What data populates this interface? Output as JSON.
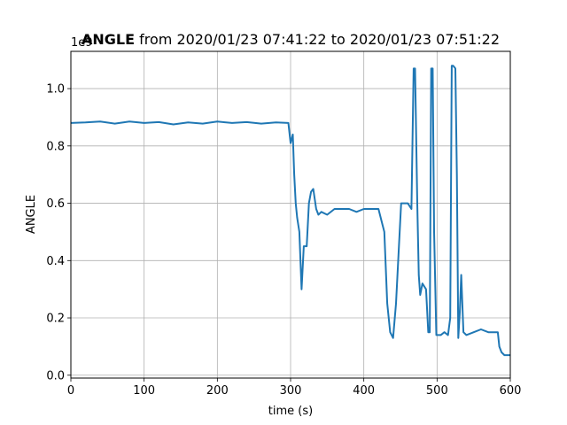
{
  "chart_data": {
    "type": "line",
    "title_bold": "ANGLE",
    "title_rest": " from 2020/01/23 07:41:22 to 2020/01/23 07:51:22",
    "xlabel": "time (s)",
    "ylabel": "ANGLE",
    "y_offset_label": "1e9",
    "xlim": [
      0,
      600
    ],
    "ylim": [
      -0.01,
      1.13
    ],
    "x_ticks": [
      0,
      100,
      200,
      300,
      400,
      500,
      600
    ],
    "x_tick_labels": [
      "0",
      "100",
      "200",
      "300",
      "400",
      "500",
      "600"
    ],
    "y_ticks": [
      0.0,
      0.2,
      0.4,
      0.6,
      0.8,
      1.0
    ],
    "y_tick_labels": [
      "0.0",
      "0.2",
      "0.4",
      "0.6",
      "0.8",
      "1.0"
    ],
    "grid": true,
    "line_color": "#1f77b4",
    "series": [
      {
        "x": [
          0,
          20,
          40,
          60,
          80,
          100,
          120,
          140,
          160,
          180,
          200,
          220,
          240,
          260,
          280,
          297,
          300,
          303,
          305,
          307,
          309,
          312,
          315,
          318,
          322,
          325,
          328,
          331,
          335,
          338,
          342,
          350,
          360,
          370,
          380,
          390,
          400,
          410,
          420,
          428,
          432,
          436,
          440,
          444,
          448,
          451,
          454,
          456,
          460,
          465,
          468,
          470,
          473,
          475,
          477,
          480,
          485,
          488,
          490,
          492,
          494,
          496,
          499,
          502,
          505,
          510,
          515,
          518,
          520,
          522,
          525,
          527,
          529,
          531,
          533,
          536,
          540,
          550,
          560,
          570,
          583,
          585,
          588,
          592,
          600
        ],
        "y": [
          0.88,
          0.882,
          0.885,
          0.878,
          0.885,
          0.88,
          0.883,
          0.875,
          0.882,
          0.878,
          0.885,
          0.88,
          0.883,
          0.878,
          0.882,
          0.88,
          0.81,
          0.84,
          0.7,
          0.6,
          0.55,
          0.5,
          0.3,
          0.45,
          0.45,
          0.6,
          0.64,
          0.65,
          0.58,
          0.56,
          0.57,
          0.56,
          0.58,
          0.58,
          0.58,
          0.57,
          0.58,
          0.58,
          0.58,
          0.5,
          0.25,
          0.15,
          0.13,
          0.25,
          0.45,
          0.6,
          0.6,
          0.6,
          0.6,
          0.58,
          1.07,
          1.07,
          0.6,
          0.35,
          0.28,
          0.32,
          0.3,
          0.15,
          0.15,
          1.07,
          1.07,
          0.5,
          0.14,
          0.14,
          0.14,
          0.15,
          0.14,
          0.2,
          1.08,
          1.08,
          1.07,
          0.7,
          0.13,
          0.22,
          0.35,
          0.15,
          0.14,
          0.15,
          0.16,
          0.15,
          0.15,
          0.1,
          0.08,
          0.07,
          0.07
        ]
      }
    ]
  }
}
